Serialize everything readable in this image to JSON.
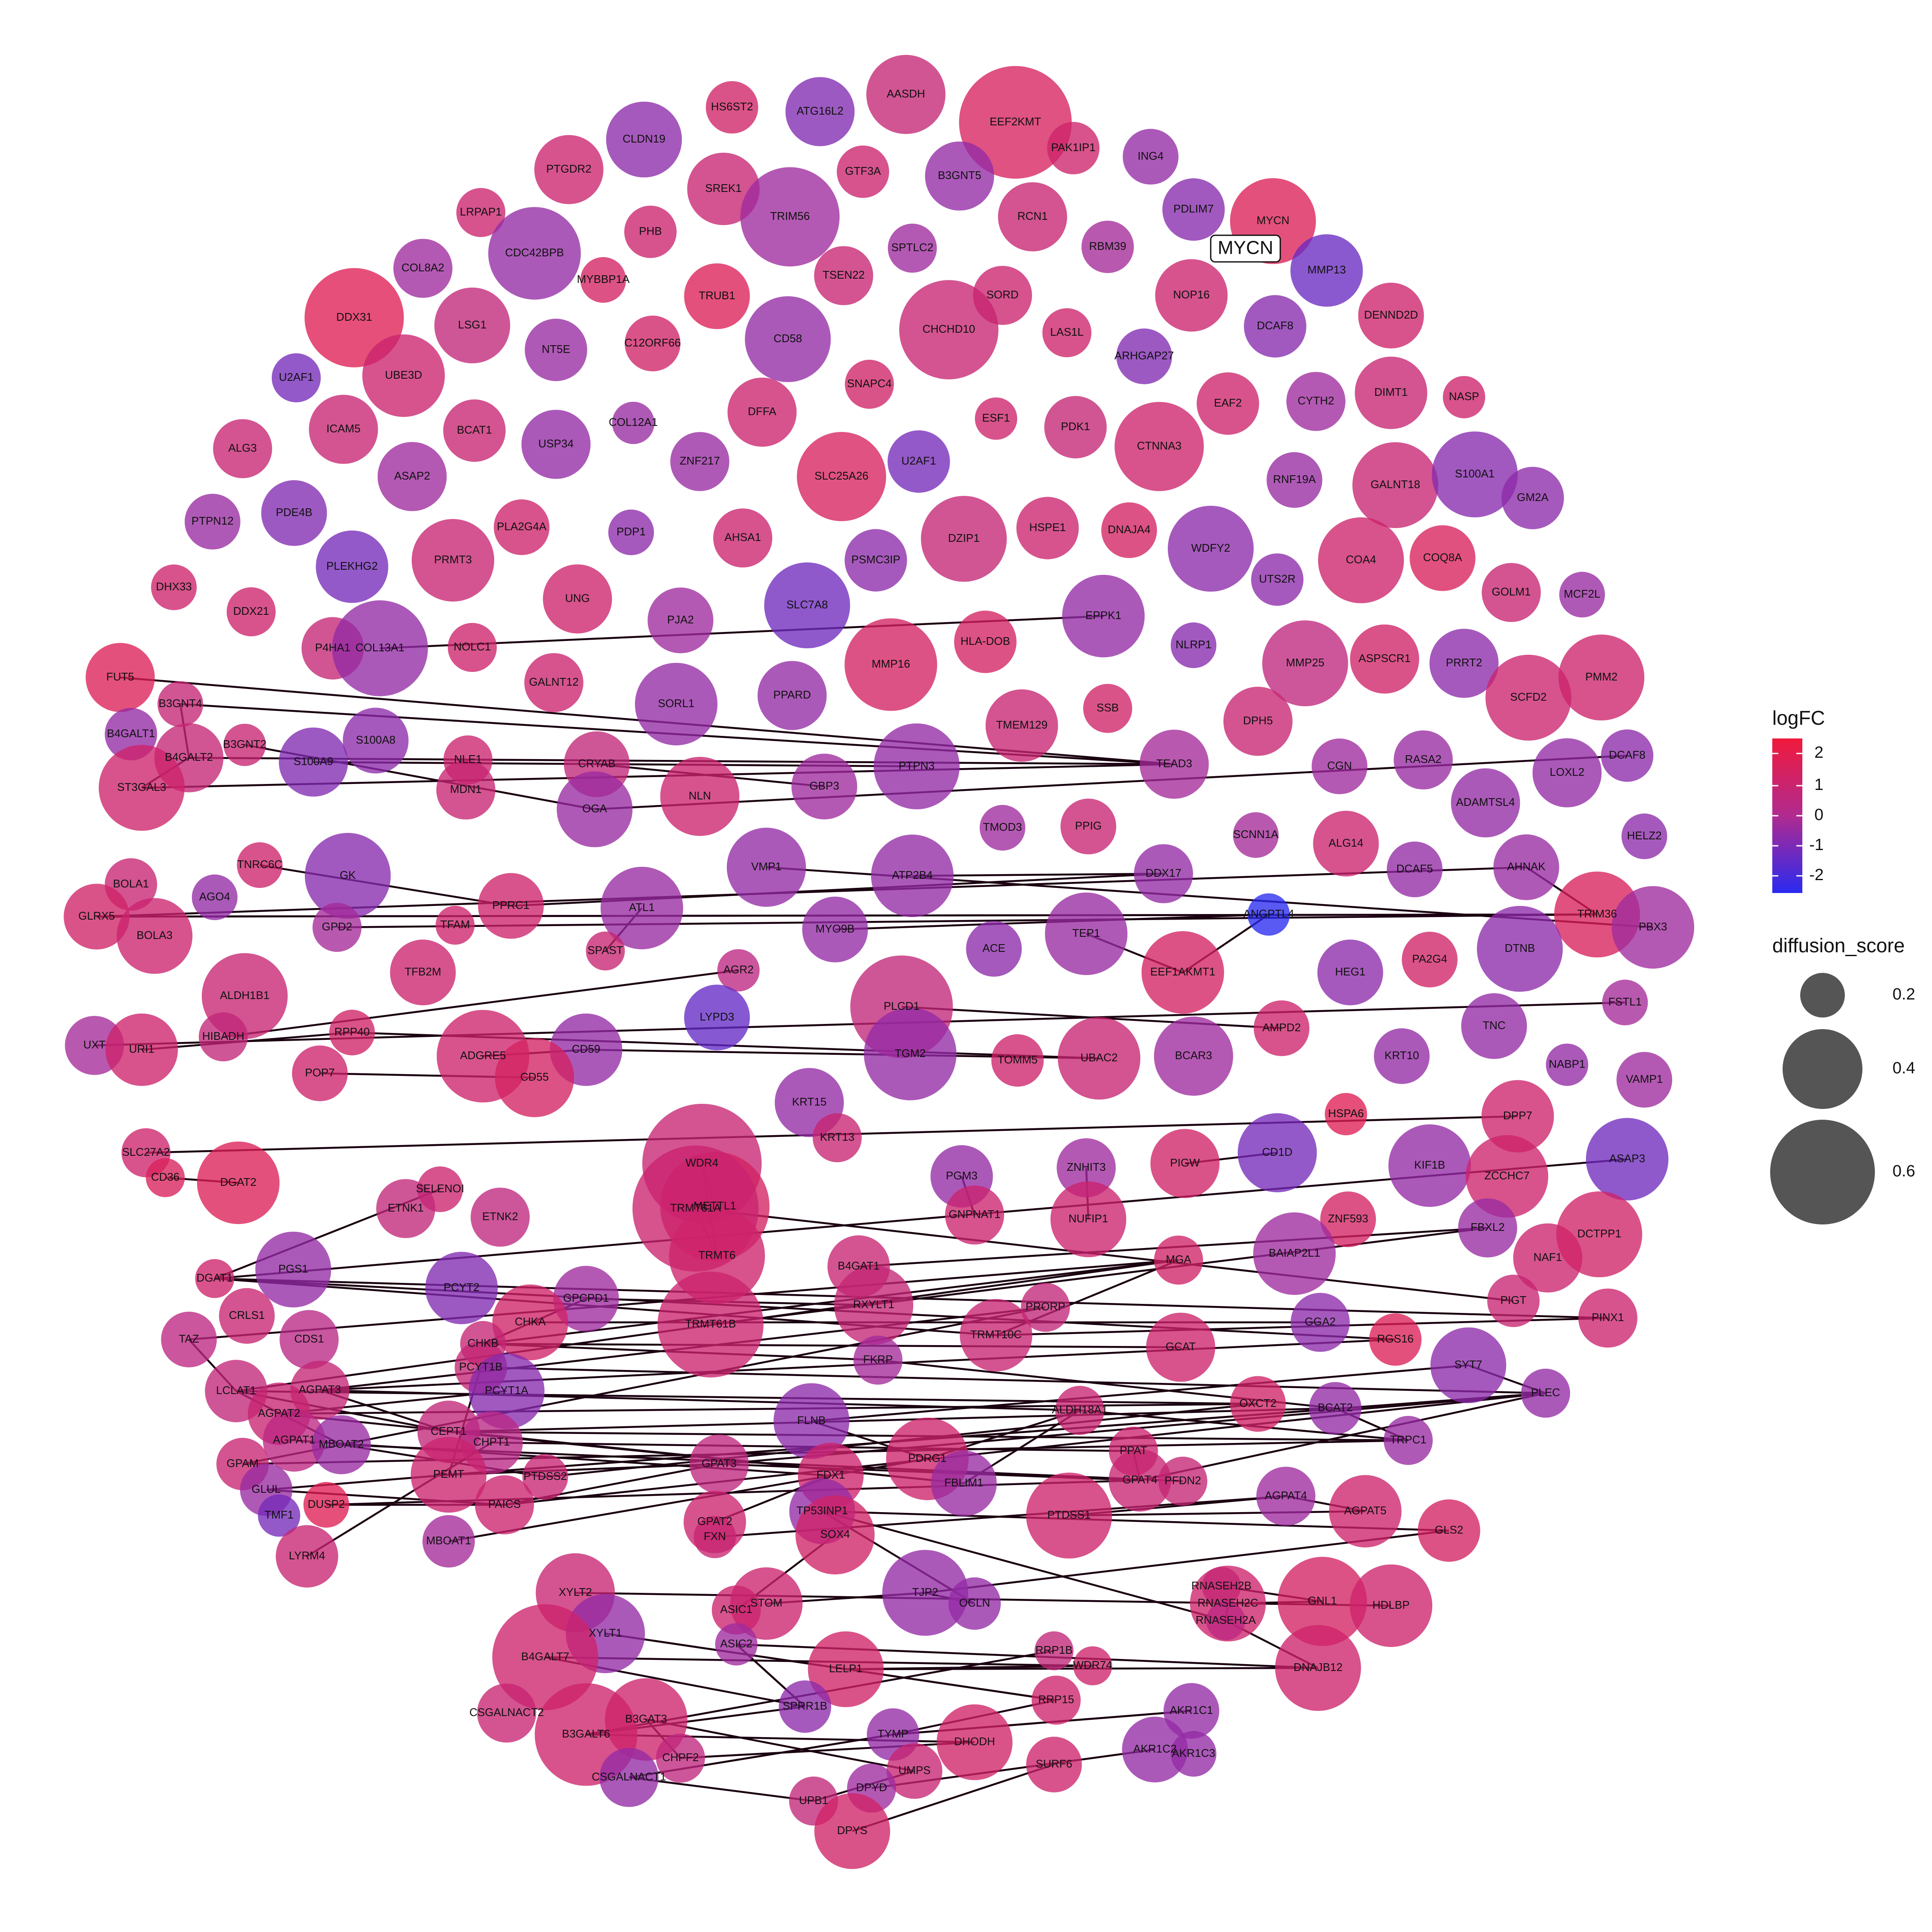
{
  "highlight": {
    "label": "MYCN"
  },
  "legend": {
    "color_title": "logFC",
    "color_ticks": [
      "2",
      "1",
      "0",
      "-1",
      "-2"
    ],
    "size_title": "diffusion_score",
    "size_ticks": [
      "0.2",
      "0.4",
      "0.6"
    ],
    "colors": {
      "high": "#f01a3c",
      "mid": "#b02a90",
      "low": "#2a2af0"
    }
  },
  "nodes": [
    [
      "HS6ST2",
      0.1,
      1.1
    ],
    [
      "ATG16L2",
      0.15,
      -0.8
    ],
    [
      "AASDH",
      0.18,
      0.7
    ],
    [
      "EEF2KMT",
      0.28,
      1.3
    ],
    [
      "CLDN19",
      0.17,
      -0.6
    ],
    [
      "GTF3A",
      0.1,
      0.9
    ],
    [
      "B3GNT5",
      0.15,
      -0.5
    ],
    [
      "PAK1IP1",
      0.1,
      1.0
    ],
    [
      "ING4",
      0.11,
      -0.5
    ],
    [
      "PTGDR2",
      0.15,
      0.9
    ],
    [
      "SREK1",
      0.16,
      0.8
    ],
    [
      "TRIM56",
      0.24,
      -0.3
    ],
    [
      "RCN1",
      0.15,
      0.8
    ],
    [
      "PDLIM7",
      0.13,
      -0.7
    ],
    [
      "MYCN",
      0.2,
      1.5
    ],
    [
      "LRPAP1",
      0.09,
      0.9
    ],
    [
      "PHB",
      0.1,
      0.9
    ],
    [
      "SPTLC2",
      0.09,
      -0.3
    ],
    [
      "RBM39",
      0.1,
      -0.2
    ],
    [
      "COL8A2",
      0.12,
      -0.3
    ],
    [
      "CDC42BPB",
      0.22,
      -0.5
    ],
    [
      "MYBBP1A",
      0.08,
      1.2
    ],
    [
      "TSEN22",
      0.12,
      0.8
    ],
    [
      "MMP13",
      0.16,
      -1.2
    ],
    [
      "DDX31",
      0.24,
      1.6
    ],
    [
      "TRUB1",
      0.14,
      1.5
    ],
    [
      "SORD",
      0.12,
      0.9
    ],
    [
      "NOP16",
      0.16,
      0.9
    ],
    [
      "LSG1",
      0.17,
      0.6
    ],
    [
      "NT5E",
      0.13,
      -0.4
    ],
    [
      "CD58",
      0.2,
      -0.5
    ],
    [
      "CHCHD10",
      0.24,
      0.8
    ],
    [
      "DENND2D",
      0.14,
      1.0
    ],
    [
      "U2AF1",
      0.09,
      -1.0
    ],
    [
      "C12ORF66",
      0.11,
      1.1
    ],
    [
      "LAS1L",
      0.09,
      1.0
    ],
    [
      "DCAF8",
      0.13,
      -0.7
    ],
    [
      "UBE3D",
      0.19,
      0.9
    ],
    [
      "ARHGAP27",
      0.11,
      -0.8
    ],
    [
      "EAF2",
      0.13,
      1.0
    ],
    [
      "DIMT1",
      0.16,
      0.8
    ],
    [
      "NASP",
      0.07,
      1.0
    ],
    [
      "SNAPC4",
      0.09,
      1.1
    ],
    [
      "COL12A1",
      0.07,
      -0.4
    ],
    [
      "DFFA",
      0.15,
      0.9
    ],
    [
      "CYTH2",
      0.12,
      -0.3
    ],
    [
      "ICAM5",
      0.15,
      0.8
    ],
    [
      "BCAT1",
      0.13,
      0.8
    ],
    [
      "ESF1",
      0.07,
      1.0
    ],
    [
      "PDK1",
      0.13,
      0.7
    ],
    [
      "ALG3",
      0.12,
      0.8
    ],
    [
      "USP34",
      0.15,
      -0.5
    ],
    [
      "CTNNA3",
      0.21,
      1.0
    ],
    [
      "ZNF217",
      0.12,
      -0.4
    ],
    [
      "U2AF1",
      0.13,
      -1.0
    ],
    [
      "RNF19A",
      0.11,
      -0.4
    ],
    [
      "GALNT18",
      0.2,
      0.8
    ],
    [
      "S100A1",
      0.2,
      -0.7
    ],
    [
      "ASAP2",
      0.15,
      -0.3
    ],
    [
      "SLC25A26",
      0.21,
      1.3
    ],
    [
      "PTPN12",
      0.11,
      -0.4
    ],
    [
      "PDE4B",
      0.14,
      -0.8
    ],
    [
      "PLA2G4A",
      0.11,
      1.0
    ],
    [
      "GM2A",
      0.13,
      -0.6
    ],
    [
      "PDP1",
      0.08,
      -0.6
    ],
    [
      "AHSA1",
      0.12,
      0.9
    ],
    [
      "DZIP1",
      0.2,
      0.7
    ],
    [
      "HSPE1",
      0.13,
      0.9
    ],
    [
      "DNAJA4",
      0.11,
      1.2
    ],
    [
      "WDFY2",
      0.2,
      -0.6
    ],
    [
      "PRMT3",
      0.19,
      0.8
    ],
    [
      "PLEKHG2",
      0.16,
      -1.0
    ],
    [
      "PSMC3IP",
      0.13,
      -0.6
    ],
    [
      "COA4",
      0.2,
      1.0
    ],
    [
      "COQ8A",
      0.14,
      1.4
    ],
    [
      "UTS2R",
      0.1,
      -0.6
    ],
    [
      "MCF2L",
      0.08,
      -0.4
    ],
    [
      "DHX33",
      0.08,
      1.0
    ],
    [
      "DDX21",
      0.09,
      1.0
    ],
    [
      "UNG",
      0.15,
      1.0
    ],
    [
      "GOLM1",
      0.12,
      0.8
    ],
    [
      "SLC7A8",
      0.2,
      -1.1
    ],
    [
      "PJA2",
      0.14,
      -0.3
    ],
    [
      "EPPK1",
      0.19,
      -0.5
    ],
    [
      "NOLC1",
      0.09,
      1.0
    ],
    [
      "P4HA1",
      0.13,
      0.7
    ],
    [
      "COL13A1",
      0.23,
      -0.5
    ],
    [
      "HLA-DOB",
      0.13,
      1.2
    ],
    [
      "NLRP1",
      0.08,
      -0.7
    ],
    [
      "MMP16",
      0.22,
      1.2
    ],
    [
      "MMP25",
      0.2,
      0.5
    ],
    [
      "ASPSCR1",
      0.15,
      1.1
    ],
    [
      "PRRT2",
      0.15,
      -0.6
    ],
    [
      "PMM2",
      0.2,
      1.0
    ],
    [
      "FUT5",
      0.15,
      1.5
    ],
    [
      "SORL1",
      0.19,
      -0.5
    ],
    [
      "GALNT12",
      0.12,
      0.9
    ],
    [
      "PPARD",
      0.15,
      -0.5
    ],
    [
      "TMEM129",
      0.16,
      0.8
    ],
    [
      "SSB",
      0.09,
      1.1
    ],
    [
      "DPH5",
      0.15,
      0.8
    ],
    [
      "SCFD2",
      0.2,
      0.9
    ],
    [
      "B3GNT4",
      0.08,
      0.7
    ],
    [
      "B4GALT1",
      0.1,
      -0.5
    ],
    [
      "B3GNT2",
      0.07,
      0.8
    ],
    [
      "S100A8",
      0.14,
      -0.6
    ],
    [
      "TEAD3",
      0.15,
      -0.2
    ],
    [
      "CGN",
      0.11,
      -0.3
    ],
    [
      "RASA2",
      0.12,
      -0.4
    ],
    [
      "DCAF8",
      0.1,
      -0.6
    ],
    [
      "B4GALT2",
      0.15,
      0.7
    ],
    [
      "CRYAB",
      0.14,
      0.6
    ],
    [
      "NLE1",
      0.09,
      0.9
    ],
    [
      "LOXL2",
      0.15,
      -0.5
    ],
    [
      "ST3GAL3",
      0.2,
      1.0
    ],
    [
      "S100A9",
      0.15,
      -0.8
    ],
    [
      "MDN1",
      0.12,
      0.8
    ],
    [
      "OGA",
      0.17,
      -0.4
    ],
    [
      "NLN",
      0.18,
      0.9
    ],
    [
      "GBP3",
      0.14,
      -0.3
    ],
    [
      "PTPN3",
      0.2,
      -0.5
    ],
    [
      "ADAMTSL4",
      0.15,
      -0.5
    ],
    [
      "TMOD3",
      0.08,
      -0.3
    ],
    [
      "PPIG",
      0.11,
      0.8
    ],
    [
      "SCNN1A",
      0.08,
      -0.2
    ],
    [
      "ALG14",
      0.14,
      0.9
    ],
    [
      "HELZ2",
      0.08,
      -0.6
    ],
    [
      "BOLA1",
      0.1,
      0.8
    ],
    [
      "TNRC6C",
      0.08,
      1.0
    ],
    [
      "AGO4",
      0.08,
      -0.5
    ],
    [
      "GK",
      0.2,
      -0.7
    ],
    [
      "PPRC1",
      0.14,
      1.0
    ],
    [
      "VMP1",
      0.18,
      -0.5
    ],
    [
      "ATP2B4",
      0.19,
      -0.5
    ],
    [
      "DDX17",
      0.12,
      -0.5
    ],
    [
      "DCAF5",
      0.11,
      -0.5
    ],
    [
      "AHNAK",
      0.14,
      -0.4
    ],
    [
      "GLRX5",
      0.14,
      1.1
    ],
    [
      "BOLA3",
      0.17,
      0.9
    ],
    [
      "GPD2",
      0.09,
      -0.2
    ],
    [
      "TFAM",
      0.06,
      1.0
    ],
    [
      "ATL1",
      0.19,
      -0.4
    ],
    [
      "MYO9B",
      0.14,
      -0.5
    ],
    [
      "TRIM36",
      0.2,
      1.4
    ],
    [
      "PBX3",
      0.19,
      -0.3
    ],
    [
      "TFB2M",
      0.14,
      0.9
    ],
    [
      "SPAST",
      0.06,
      0.8
    ],
    [
      "ANGPTL4",
      0.07,
      -2.3
    ],
    [
      "ACE",
      0.11,
      -0.6
    ],
    [
      "TEP1",
      0.19,
      -0.4
    ],
    [
      "EEF1AKMT1",
      0.19,
      1.2
    ],
    [
      "HEG1",
      0.14,
      -0.6
    ],
    [
      "PA2G4",
      0.11,
      1.1
    ],
    [
      "DTNB",
      0.2,
      -0.6
    ],
    [
      "ALDH1B1",
      0.2,
      0.8
    ],
    [
      "HIBADH",
      0.09,
      0.6
    ],
    [
      "AGR2",
      0.07,
      0.4
    ],
    [
      "LYPD3",
      0.14,
      -1.3
    ],
    [
      "PLCD1",
      0.25,
      0.6
    ],
    [
      "AMPD2",
      0.11,
      1.0
    ],
    [
      "FSTL1",
      0.08,
      -0.2
    ],
    [
      "UXT",
      0.12,
      -0.2
    ],
    [
      "URI1",
      0.16,
      1.0
    ],
    [
      "RPP40",
      0.08,
      1.1
    ],
    [
      "ADGRE5",
      0.22,
      1.0
    ],
    [
      "CD59",
      0.16,
      -0.5
    ],
    [
      "TGM2",
      0.22,
      -0.5
    ],
    [
      "TOMM5",
      0.1,
      1.0
    ],
    [
      "UBAC2",
      0.19,
      0.8
    ],
    [
      "BCAR3",
      0.18,
      -0.3
    ],
    [
      "KRT10",
      0.11,
      -0.5
    ],
    [
      "TNC",
      0.14,
      -0.5
    ],
    [
      "POP7",
      0.11,
      1.0
    ],
    [
      "CD55",
      0.18,
      1.2
    ],
    [
      "NABP1",
      0.07,
      -0.5
    ],
    [
      "VAMP1",
      0.11,
      -0.3
    ],
    [
      "KRT15",
      0.15,
      -0.5
    ],
    [
      "KRT13",
      0.09,
      0.8
    ],
    [
      "HSPA6",
      0.07,
      1.6
    ],
    [
      "DPP7",
      0.16,
      1.0
    ],
    [
      "SLC27A2",
      0.09,
      1.0
    ],
    [
      "CD36",
      0.06,
      1.4
    ],
    [
      "DGAT2",
      0.19,
      1.5
    ],
    [
      "WDR4",
      0.3,
      0.8
    ],
    [
      "METTL1",
      0.27,
      1.2
    ],
    [
      "TRMT61A",
      0.32,
      0.9
    ],
    [
      "TRMT6",
      0.23,
      1.0
    ],
    [
      "PGM3",
      0.13,
      -0.5
    ],
    [
      "GNPNAT1",
      0.12,
      0.9
    ],
    [
      "ZNHIT3",
      0.12,
      -0.3
    ],
    [
      "NUFIP1",
      0.17,
      0.9
    ],
    [
      "PIGW",
      0.15,
      1.1
    ],
    [
      "CD1D",
      0.18,
      -1.0
    ],
    [
      "KIF1B",
      0.19,
      -0.5
    ],
    [
      "ZCCHC7",
      0.19,
      1.0
    ],
    [
      "ASAP3",
      0.19,
      -1.1
    ],
    [
      "SELENOI",
      0.08,
      0.9
    ],
    [
      "ETNK1",
      0.12,
      0.6
    ],
    [
      "ETNK2",
      0.12,
      0.5
    ],
    [
      "DGAT1",
      0.06,
      1.0
    ],
    [
      "ZNF593",
      0.11,
      1.2
    ],
    [
      "BAIAP2L1",
      0.19,
      -0.3
    ],
    [
      "FBXL2",
      0.12,
      -0.4
    ],
    [
      "NAF1",
      0.15,
      0.9
    ],
    [
      "DCTPP1",
      0.2,
      1.1
    ],
    [
      "PGS1",
      0.17,
      -0.5
    ],
    [
      "PCYT2",
      0.16,
      -0.8
    ],
    [
      "GPCPD1",
      0.14,
      -0.3
    ],
    [
      "TRMT61B",
      0.26,
      0.9
    ],
    [
      "B4GAT1",
      0.13,
      0.8
    ],
    [
      "RXYLT1",
      0.18,
      0.7
    ],
    [
      "MGA",
      0.09,
      1.1
    ],
    [
      "PIGT",
      0.1,
      0.8
    ],
    [
      "PINX1",
      0.12,
      0.9
    ],
    [
      "CRLS1",
      0.11,
      0.8
    ],
    [
      "CHKA",
      0.17,
      1.1
    ],
    [
      "CHKB",
      0.08,
      0.7
    ],
    [
      "TAZ",
      0.11,
      0.4
    ],
    [
      "CDS1",
      0.12,
      0.3
    ],
    [
      "PRORP",
      0.09,
      0.6
    ],
    [
      "TRMT10C",
      0.16,
      0.8
    ],
    [
      "GCAT",
      0.15,
      1.0
    ],
    [
      "GGA2",
      0.12,
      -0.6
    ],
    [
      "RGS16",
      0.1,
      1.5
    ],
    [
      "SYT7",
      0.17,
      -0.6
    ],
    [
      "PCYT1B",
      0.1,
      0.7
    ],
    [
      "PCYT1A",
      0.17,
      -0.7
    ],
    [
      "FKRP",
      0.09,
      -0.2
    ],
    [
      "LCLAT1",
      0.13,
      0.6
    ],
    [
      "AGPAT3",
      0.12,
      0.7
    ],
    [
      "AGPAT2",
      0.13,
      0.8
    ],
    [
      "OXCT2",
      0.11,
      1.1
    ],
    [
      "BCAT2",
      0.1,
      -0.5
    ],
    [
      "PLEC",
      0.09,
      -0.5
    ],
    [
      "ALDH18A1",
      0.09,
      0.8
    ],
    [
      "FLNB",
      0.17,
      -0.6
    ],
    [
      "CEPT1",
      0.13,
      0.6
    ],
    [
      "AGPAT1",
      0.13,
      0.4
    ],
    [
      "MBOAT2",
      0.12,
      -0.4
    ],
    [
      "GPAM",
      0.1,
      0.8
    ],
    [
      "CHPT1",
      0.13,
      0.3
    ],
    [
      "PEMT",
      0.17,
      0.9
    ],
    [
      "PTDSS2",
      0.08,
      0.8
    ],
    [
      "PDRG1",
      0.19,
      1.0
    ],
    [
      "TRPC1",
      0.09,
      -0.4
    ],
    [
      "PPAT",
      0.09,
      0.9
    ],
    [
      "GPAT4",
      0.13,
      0.8
    ],
    [
      "GPAT3",
      0.12,
      0.5
    ],
    [
      "FDX1",
      0.14,
      1.0
    ],
    [
      "FBLIM1",
      0.14,
      -0.4
    ],
    [
      "PFDN2",
      0.09,
      0.7
    ],
    [
      "GLUL",
      0.1,
      -0.4
    ],
    [
      "PAICS",
      0.12,
      0.9
    ],
    [
      "DUSP2",
      0.08,
      1.6
    ],
    [
      "TMF1",
      0.07,
      -1.0
    ],
    [
      "LYRM4",
      0.13,
      0.8
    ],
    [
      "MBOAT1",
      0.1,
      -0.2
    ],
    [
      "GPAT2",
      0.13,
      0.9
    ],
    [
      "AGPAT4",
      0.12,
      -0.3
    ],
    [
      "AGPAT5",
      0.16,
      1.0
    ],
    [
      "PTDSS1",
      0.2,
      1.0
    ],
    [
      "FXN",
      0.07,
      0.8
    ],
    [
      "GLS2",
      0.13,
      1.2
    ],
    [
      "TP53INP1",
      0.14,
      -0.5
    ],
    [
      "SOX4",
      0.18,
      1.1
    ],
    [
      "ASIC1",
      0.09,
      0.9
    ],
    [
      "STOM",
      0.16,
      0.9
    ],
    [
      "TJP2",
      0.2,
      -0.5
    ],
    [
      "OCLN",
      0.1,
      -0.5
    ],
    [
      "RNASEH2C",
      0.17,
      1.0
    ],
    [
      "RNASEH2B",
      0.06,
      0.7
    ],
    [
      "RNASEH2A",
      0.06,
      0.4
    ],
    [
      "GNL1",
      0.21,
      1.2
    ],
    [
      "HDLBP",
      0.19,
      1.0
    ],
    [
      "XYLT2",
      0.18,
      0.8
    ],
    [
      "XYLT1",
      0.18,
      -0.5
    ],
    [
      "ASIC2",
      0.07,
      -0.3
    ],
    [
      "RRP1B",
      0.06,
      0.6
    ],
    [
      "WDR74",
      0.06,
      1.0
    ],
    [
      "LELP1",
      0.17,
      1.1
    ],
    [
      "DNAJB12",
      0.2,
      1.0
    ],
    [
      "B4GALT7",
      0.26,
      1.0
    ],
    [
      "SPRR1B",
      0.1,
      -0.6
    ],
    [
      "RRP15",
      0.09,
      1.0
    ],
    [
      "CSGALNACT2",
      0.12,
      0.8
    ],
    [
      "AKR1C1",
      0.11,
      -0.5
    ],
    [
      "B3GALT6",
      0.25,
      1.0
    ],
    [
      "B3GAT3",
      0.19,
      1.0
    ],
    [
      "CHPF2",
      0.09,
      0.5
    ],
    [
      "TYMP",
      0.1,
      -0.5
    ],
    [
      "DHODH",
      0.17,
      1.1
    ],
    [
      "AKR1C2",
      0.14,
      -0.5
    ],
    [
      "AKR1C3",
      0.08,
      -0.5
    ],
    [
      "SURF6",
      0.11,
      1.0
    ],
    [
      "UMPS",
      0.11,
      0.8
    ],
    [
      "CSGALNACT1",
      0.12,
      -0.5
    ],
    [
      "DPYD",
      0.09,
      -0.3
    ],
    [
      "UPB1",
      0.09,
      0.6
    ],
    [
      "DPYS",
      0.17,
      1.1
    ]
  ]
}
